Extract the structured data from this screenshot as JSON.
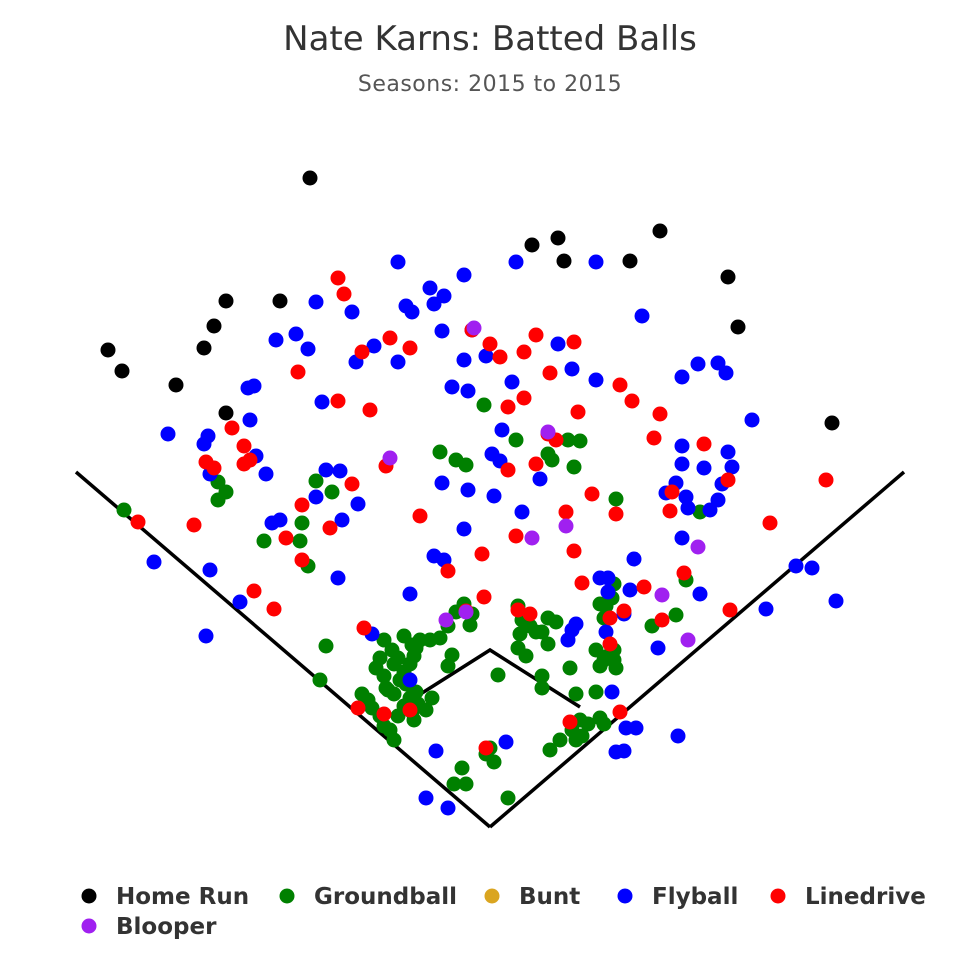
{
  "chart_data": {
    "type": "scatter",
    "title": "Nate Karns: Batted Balls",
    "subtitle": "Seasons: 2015 to 2015",
    "grid": false,
    "legend_position": "bottom",
    "series": [
      {
        "name": "Home Run",
        "color": "#000000",
        "points": [
          [
            310,
            178
          ],
          [
            108,
            350
          ],
          [
            122,
            371
          ],
          [
            176,
            385
          ],
          [
            204,
            348
          ],
          [
            214,
            326
          ],
          [
            226,
            301
          ],
          [
            280,
            301
          ],
          [
            226,
            413
          ],
          [
            532,
            245
          ],
          [
            558,
            238
          ],
          [
            564,
            261
          ],
          [
            630,
            261
          ],
          [
            660,
            231
          ],
          [
            728,
            277
          ],
          [
            738,
            327
          ],
          [
            832,
            423
          ]
        ]
      },
      {
        "name": "Groundball",
        "color": "#008000",
        "points": [
          [
            124,
            510
          ],
          [
            218,
            482
          ],
          [
            226,
            492
          ],
          [
            218,
            500
          ],
          [
            264,
            541
          ],
          [
            300,
            541
          ],
          [
            302,
            523
          ],
          [
            316,
            481
          ],
          [
            332,
            492
          ],
          [
            308,
            566
          ],
          [
            326,
            646
          ],
          [
            320,
            680
          ],
          [
            440,
            452
          ],
          [
            456,
            460
          ],
          [
            466,
            465
          ],
          [
            484,
            405
          ],
          [
            516,
            440
          ],
          [
            548,
            454
          ],
          [
            552,
            460
          ],
          [
            568,
            440
          ],
          [
            580,
            441
          ],
          [
            574,
            467
          ],
          [
            616,
            499
          ],
          [
            700,
            512
          ],
          [
            686,
            580
          ],
          [
            676,
            615
          ],
          [
            652,
            626
          ],
          [
            384,
            640
          ],
          [
            392,
            650
          ],
          [
            404,
            636
          ],
          [
            412,
            645
          ],
          [
            420,
            640
          ],
          [
            430,
            640
          ],
          [
            440,
            638
          ],
          [
            448,
            626
          ],
          [
            456,
            612
          ],
          [
            464,
            604
          ],
          [
            472,
            614
          ],
          [
            470,
            625
          ],
          [
            452,
            655
          ],
          [
            448,
            666
          ],
          [
            376,
            668
          ],
          [
            380,
            658
          ],
          [
            384,
            676
          ],
          [
            388,
            690
          ],
          [
            394,
            664
          ],
          [
            398,
            658
          ],
          [
            404,
            672
          ],
          [
            410,
            664
          ],
          [
            414,
            656
          ],
          [
            416,
            648
          ],
          [
            362,
            694
          ],
          [
            368,
            700
          ],
          [
            372,
            708
          ],
          [
            380,
            716
          ],
          [
            384,
            726
          ],
          [
            390,
            730
          ],
          [
            394,
            740
          ],
          [
            398,
            716
          ],
          [
            404,
            706
          ],
          [
            410,
            698
          ],
          [
            416,
            692
          ],
          [
            386,
            688
          ],
          [
            394,
            694
          ],
          [
            400,
            680
          ],
          [
            406,
            684
          ],
          [
            412,
            712
          ],
          [
            418,
            704
          ],
          [
            426,
            710
          ],
          [
            432,
            698
          ],
          [
            518,
            606
          ],
          [
            522,
            620
          ],
          [
            530,
            626
          ],
          [
            520,
            634
          ],
          [
            518,
            648
          ],
          [
            526,
            656
          ],
          [
            536,
            632
          ],
          [
            542,
            632
          ],
          [
            548,
            618
          ],
          [
            556,
            622
          ],
          [
            548,
            644
          ],
          [
            542,
            676
          ],
          [
            542,
            688
          ],
          [
            570,
            668
          ],
          [
            576,
            694
          ],
          [
            580,
            720
          ],
          [
            572,
            730
          ],
          [
            576,
            740
          ],
          [
            560,
            740
          ],
          [
            550,
            750
          ],
          [
            582,
            736
          ],
          [
            588,
            724
          ],
          [
            596,
            692
          ],
          [
            600,
            718
          ],
          [
            604,
            724
          ],
          [
            596,
            650
          ],
          [
            600,
            666
          ],
          [
            604,
            660
          ],
          [
            608,
            656
          ],
          [
            614,
            650
          ],
          [
            614,
            660
          ],
          [
            616,
            668
          ],
          [
            604,
            618
          ],
          [
            606,
            606
          ],
          [
            612,
            598
          ],
          [
            614,
            584
          ],
          [
            600,
            604
          ],
          [
            498,
            675
          ],
          [
            486,
            754
          ],
          [
            490,
            748
          ],
          [
            494,
            762
          ],
          [
            462,
            768
          ],
          [
            466,
            784
          ],
          [
            454,
            784
          ],
          [
            508,
            798
          ],
          [
            414,
            720
          ]
        ]
      },
      {
        "name": "Bunt",
        "color": "#DAA520",
        "points": []
      },
      {
        "name": "Flyball",
        "color": "#0000FF",
        "points": [
          [
            398,
            262
          ],
          [
            464,
            275
          ],
          [
            516,
            262
          ],
          [
            596,
            262
          ],
          [
            430,
            288
          ],
          [
            444,
            296
          ],
          [
            434,
            304
          ],
          [
            406,
            306
          ],
          [
            412,
            312
          ],
          [
            316,
            302
          ],
          [
            352,
            312
          ],
          [
            296,
            334
          ],
          [
            276,
            340
          ],
          [
            308,
            349
          ],
          [
            356,
            362
          ],
          [
            374,
            346
          ],
          [
            398,
            362
          ],
          [
            442,
            331
          ],
          [
            472,
            330
          ],
          [
            486,
            356
          ],
          [
            464,
            360
          ],
          [
            452,
            387
          ],
          [
            468,
            391
          ],
          [
            512,
            382
          ],
          [
            558,
            344
          ],
          [
            572,
            369
          ],
          [
            596,
            380
          ],
          [
            642,
            316
          ],
          [
            682,
            377
          ],
          [
            698,
            364
          ],
          [
            718,
            363
          ],
          [
            726,
            373
          ],
          [
            752,
            420
          ],
          [
            248,
            388
          ],
          [
            254,
            386
          ],
          [
            250,
            420
          ],
          [
            168,
            434
          ],
          [
            208,
            436
          ],
          [
            204,
            444
          ],
          [
            210,
            474
          ],
          [
            266,
            474
          ],
          [
            256,
            456
          ],
          [
            326,
            470
          ],
          [
            340,
            471
          ],
          [
            322,
            402
          ],
          [
            502,
            430
          ],
          [
            492,
            454
          ],
          [
            500,
            461
          ],
          [
            540,
            479
          ],
          [
            442,
            483
          ],
          [
            468,
            490
          ],
          [
            494,
            496
          ],
          [
            522,
            512
          ],
          [
            464,
            529
          ],
          [
            434,
            556
          ],
          [
            444,
            560
          ],
          [
            316,
            497
          ],
          [
            342,
            520
          ],
          [
            358,
            504
          ],
          [
            280,
            520
          ],
          [
            272,
            523
          ],
          [
            210,
            570
          ],
          [
            240,
            602
          ],
          [
            206,
            636
          ],
          [
            154,
            562
          ],
          [
            338,
            578
          ],
          [
            410,
            594
          ],
          [
            682,
            446
          ],
          [
            682,
            464
          ],
          [
            704,
            468
          ],
          [
            728,
            452
          ],
          [
            732,
            467
          ],
          [
            722,
            484
          ],
          [
            718,
            500
          ],
          [
            688,
            508
          ],
          [
            676,
            483
          ],
          [
            666,
            493
          ],
          [
            686,
            497
          ],
          [
            710,
            510
          ],
          [
            682,
            538
          ],
          [
            634,
            559
          ],
          [
            600,
            578
          ],
          [
            608,
            578
          ],
          [
            630,
            590
          ],
          [
            608,
            592
          ],
          [
            624,
            614
          ],
          [
            606,
            632
          ],
          [
            572,
            630
          ],
          [
            576,
            624
          ],
          [
            568,
            640
          ],
          [
            658,
            648
          ],
          [
            700,
            594
          ],
          [
            766,
            609
          ],
          [
            796,
            566
          ],
          [
            812,
            568
          ],
          [
            836,
            601
          ],
          [
            372,
            634
          ],
          [
            410,
            680
          ],
          [
            612,
            692
          ],
          [
            626,
            728
          ],
          [
            636,
            728
          ],
          [
            616,
            752
          ],
          [
            624,
            751
          ],
          [
            678,
            736
          ],
          [
            506,
            742
          ],
          [
            436,
            751
          ],
          [
            426,
            798
          ],
          [
            448,
            808
          ]
        ]
      },
      {
        "name": "Linedrive",
        "color": "#FF0000",
        "points": [
          [
            338,
            278
          ],
          [
            344,
            294
          ],
          [
            362,
            352
          ],
          [
            390,
            338
          ],
          [
            410,
            348
          ],
          [
            298,
            372
          ],
          [
            338,
            401
          ],
          [
            370,
            410
          ],
          [
            472,
            330
          ],
          [
            490,
            344
          ],
          [
            500,
            357
          ],
          [
            524,
            352
          ],
          [
            536,
            335
          ],
          [
            574,
            342
          ],
          [
            550,
            373
          ],
          [
            524,
            398
          ],
          [
            508,
            407
          ],
          [
            620,
            385
          ],
          [
            632,
            401
          ],
          [
            660,
            414
          ],
          [
            578,
            412
          ],
          [
            654,
            438
          ],
          [
            704,
            444
          ],
          [
            548,
            434
          ],
          [
            556,
            440
          ],
          [
            508,
            470
          ],
          [
            536,
            464
          ],
          [
            386,
            466
          ],
          [
            232,
            428
          ],
          [
            244,
            446
          ],
          [
            244,
            464
          ],
          [
            250,
            460
          ],
          [
            206,
            462
          ],
          [
            214,
            468
          ],
          [
            138,
            522
          ],
          [
            194,
            525
          ],
          [
            302,
            505
          ],
          [
            330,
            528
          ],
          [
            286,
            538
          ],
          [
            302,
            560
          ],
          [
            352,
            484
          ],
          [
            420,
            516
          ],
          [
            516,
            536
          ],
          [
            566,
            512
          ],
          [
            574,
            551
          ],
          [
            592,
            494
          ],
          [
            616,
            514
          ],
          [
            672,
            492
          ],
          [
            670,
            511
          ],
          [
            826,
            480
          ],
          [
            770,
            523
          ],
          [
            728,
            480
          ],
          [
            482,
            554
          ],
          [
            448,
            571
          ],
          [
            484,
            597
          ],
          [
            254,
            591
          ],
          [
            274,
            609
          ],
          [
            364,
            628
          ],
          [
            466,
            611
          ],
          [
            518,
            610
          ],
          [
            530,
            614
          ],
          [
            582,
            583
          ],
          [
            610,
            618
          ],
          [
            624,
            611
          ],
          [
            644,
            587
          ],
          [
            662,
            620
          ],
          [
            684,
            573
          ],
          [
            730,
            610
          ],
          [
            610,
            644
          ],
          [
            358,
            708
          ],
          [
            384,
            714
          ],
          [
            410,
            710
          ],
          [
            486,
            748
          ],
          [
            570,
            722
          ],
          [
            620,
            712
          ]
        ]
      },
      {
        "name": "Blooper",
        "color": "#A020F0",
        "points": [
          [
            390,
            458
          ],
          [
            548,
            432
          ],
          [
            566,
            526
          ],
          [
            532,
            538
          ],
          [
            474,
            328
          ],
          [
            446,
            620
          ],
          [
            466,
            612
          ],
          [
            662,
            595
          ],
          [
            698,
            547
          ],
          [
            688,
            640
          ]
        ]
      }
    ]
  }
}
